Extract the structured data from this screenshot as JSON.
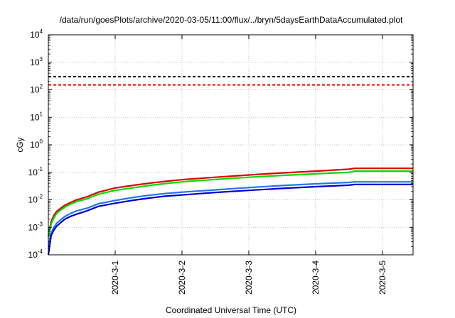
{
  "chart_data": {
    "type": "line",
    "title": "/data/run/goesPlots/archive/2020-03-05/11:00/flux/../bryn/5daysEarthDataAccumulated.plot",
    "xlabel": "Coordinated Universal Time (UTC)",
    "ylabel": "cGy",
    "y_scale": "log",
    "ylim": [
      0.0001,
      10000
    ],
    "xlim": [
      "2020-02-29 00:00",
      "2020-03-05 11:00"
    ],
    "x_ticks": [
      "2020-3-1",
      "2020-3-2",
      "2020-3-3",
      "2020-3-4",
      "2020-3-5"
    ],
    "y_ticks": [
      {
        "base": "10",
        "exp": "-4"
      },
      {
        "base": "10",
        "exp": "-3"
      },
      {
        "base": "10",
        "exp": "-2"
      },
      {
        "base": "10",
        "exp": "-1"
      },
      {
        "base": "10",
        "exp": "0"
      },
      {
        "base": "10",
        "exp": "1"
      },
      {
        "base": "10",
        "exp": "2"
      },
      {
        "base": "10",
        "exp": "3"
      },
      {
        "base": "10",
        "exp": "4"
      }
    ],
    "grid": true,
    "reference_lines": [
      {
        "value": 300,
        "color": "#000000",
        "style": "dashed"
      },
      {
        "value": 150,
        "color": "#ff0000",
        "style": "dashed"
      }
    ],
    "series": [
      {
        "color": "#dd0000",
        "x": [
          "2020-02-29 00:00",
          "2020-02-29 01:00",
          "2020-02-29 02:00",
          "2020-02-29 03:00",
          "2020-02-29 04:30",
          "2020-02-29 06:00",
          "2020-02-29 08:00",
          "2020-02-29 10:00",
          "2020-02-29 14:00",
          "2020-02-29 18:00",
          "2020-03-01 00:00",
          "2020-03-01 06:00",
          "2020-03-01 12:00",
          "2020-03-01 18:00",
          "2020-03-02 00:00",
          "2020-03-02 12:00",
          "2020-03-03 00:00",
          "2020-03-03 12:00",
          "2020-03-04 00:00",
          "2020-03-04 12:00",
          "2020-03-04 14:00",
          "2020-03-05 00:00",
          "2020-03-05 11:00"
        ],
        "values": [
          0.0005,
          0.0016,
          0.0027,
          0.0038,
          0.005,
          0.0064,
          0.008,
          0.0098,
          0.013,
          0.019,
          0.027,
          0.033,
          0.04,
          0.047,
          0.054,
          0.066,
          0.08,
          0.095,
          0.11,
          0.13,
          0.14,
          0.14,
          0.14
        ]
      },
      {
        "color": "#00dd00",
        "x": [
          "2020-02-29 00:00",
          "2020-02-29 01:00",
          "2020-02-29 02:00",
          "2020-02-29 03:00",
          "2020-02-29 04:30",
          "2020-02-29 06:00",
          "2020-02-29 08:00",
          "2020-02-29 10:00",
          "2020-02-29 14:00",
          "2020-02-29 18:00",
          "2020-03-01 00:00",
          "2020-03-01 06:00",
          "2020-03-01 12:00",
          "2020-03-01 18:00",
          "2020-03-02 00:00",
          "2020-03-02 12:00",
          "2020-03-03 00:00",
          "2020-03-03 12:00",
          "2020-03-04 00:00",
          "2020-03-04 12:00",
          "2020-03-04 14:00",
          "2020-03-05 00:00",
          "2020-03-05 11:00"
        ],
        "values": [
          0.00045,
          0.0013,
          0.0022,
          0.0032,
          0.0043,
          0.0055,
          0.007,
          0.0085,
          0.011,
          0.016,
          0.022,
          0.027,
          0.033,
          0.039,
          0.045,
          0.055,
          0.066,
          0.077,
          0.088,
          0.1,
          0.11,
          0.11,
          0.11
        ]
      },
      {
        "color": "#2277ee",
        "x": [
          "2020-02-29 00:00",
          "2020-02-29 01:00",
          "2020-02-29 02:00",
          "2020-02-29 03:00",
          "2020-02-29 04:30",
          "2020-02-29 06:00",
          "2020-02-29 08:00",
          "2020-02-29 10:00",
          "2020-02-29 14:00",
          "2020-02-29 18:00",
          "2020-03-01 00:00",
          "2020-03-01 06:00",
          "2020-03-01 12:00",
          "2020-03-01 18:00",
          "2020-03-02 00:00",
          "2020-03-02 12:00",
          "2020-03-03 00:00",
          "2020-03-03 12:00",
          "2020-03-04 00:00",
          "2020-03-04 12:00",
          "2020-03-04 14:00",
          "2020-03-05 00:00",
          "2020-03-05 11:00"
        ],
        "values": [
          0.0002,
          0.0006,
          0.001,
          0.0014,
          0.0019,
          0.0025,
          0.0032,
          0.0039,
          0.005,
          0.0072,
          0.0095,
          0.012,
          0.0145,
          0.017,
          0.019,
          0.023,
          0.028,
          0.033,
          0.038,
          0.043,
          0.045,
          0.045,
          0.045
        ]
      },
      {
        "color": "#0000cc",
        "x": [
          "2020-02-29 00:00",
          "2020-02-29 01:00",
          "2020-02-29 02:00",
          "2020-02-29 03:00",
          "2020-02-29 04:30",
          "2020-02-29 06:00",
          "2020-02-29 08:00",
          "2020-02-29 10:00",
          "2020-02-29 14:00",
          "2020-02-29 18:00",
          "2020-03-01 00:00",
          "2020-03-01 06:00",
          "2020-03-01 12:00",
          "2020-03-01 18:00",
          "2020-03-02 00:00",
          "2020-03-02 12:00",
          "2020-03-03 00:00",
          "2020-03-03 12:00",
          "2020-03-04 00:00",
          "2020-03-04 12:00",
          "2020-03-04 14:00",
          "2020-03-05 00:00",
          "2020-03-05 11:00"
        ],
        "values": [
          0.0001,
          0.0005,
          0.0008,
          0.0011,
          0.0015,
          0.002,
          0.0025,
          0.003,
          0.004,
          0.0058,
          0.0075,
          0.0095,
          0.0115,
          0.0135,
          0.015,
          0.0185,
          0.022,
          0.026,
          0.03,
          0.034,
          0.036,
          0.036,
          0.036
        ]
      }
    ]
  }
}
